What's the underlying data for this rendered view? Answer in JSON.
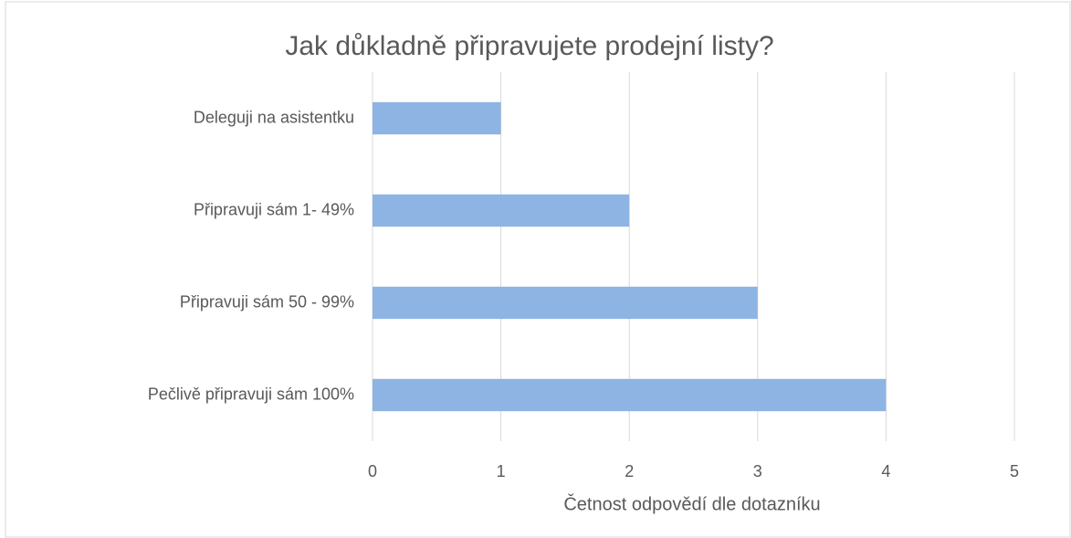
{
  "chart_data": {
    "type": "barh",
    "title": "Jak důkladně připravujete prodejní listy?",
    "xlabel": "Četnost odpovědí dle dotazníku",
    "categories": [
      "Deleguji na asistentku",
      "Připravuji sám 1- 49%",
      "Připravuji sám 50 - 99%",
      "Pečlivě připravuji sám 100%"
    ],
    "values": [
      1,
      2,
      3,
      4
    ],
    "color": "#8eb4e3",
    "xlim": [
      0,
      5
    ],
    "xticks": [
      0,
      1,
      2,
      3,
      4,
      5
    ],
    "grid": true
  }
}
